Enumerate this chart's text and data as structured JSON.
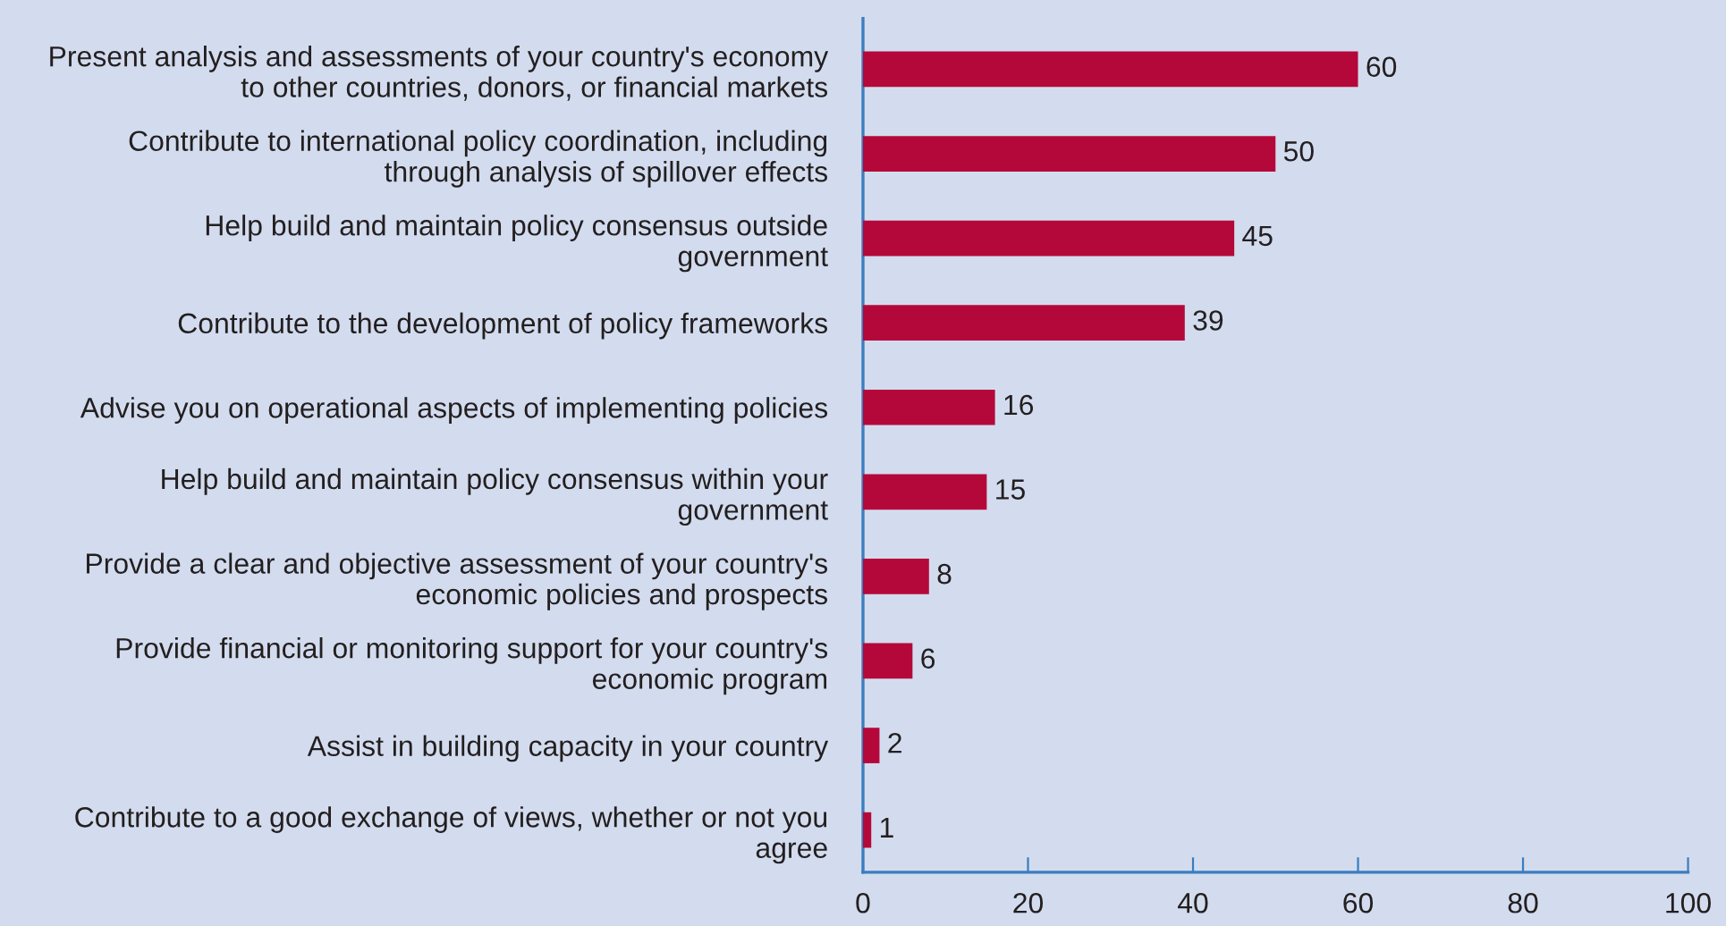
{
  "chart_data": {
    "type": "bar",
    "orientation": "horizontal",
    "categories": [
      "Present analysis and assessments of your country's economy\nto other countries, donors, or financial markets",
      "Contribute to international policy coordination, including\nthrough analysis of spillover effects",
      "Help build and maintain policy consensus outside\ngovernment",
      "Contribute to the development of policy frameworks",
      "Advise you on operational aspects of implementing policies",
      "Help build and maintain policy consensus within your\ngovernment",
      "Provide a clear and objective assessment of your country's\neconomic policies and prospects",
      "Provide financial or monitoring support for your country's\neconomic program",
      "Assist in building capacity in your country",
      "Contribute to a good exchange of views, whether or not you\nagree"
    ],
    "values": [
      60,
      50,
      45,
      39,
      16,
      15,
      8,
      6,
      2,
      1
    ],
    "color": "#b5083a",
    "xlim": [
      0,
      100
    ],
    "xticks": [
      0,
      20,
      40,
      60,
      80,
      100
    ],
    "grid": false,
    "legend": false,
    "data_labels": true
  }
}
